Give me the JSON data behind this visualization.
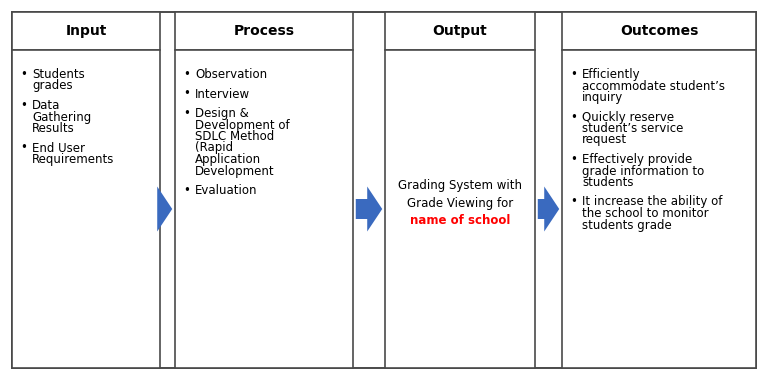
{
  "background_color": "#ffffff",
  "border_color": "#4a4a4a",
  "arrow_color": "#3a6abf",
  "text_color": "#000000",
  "red_text_color": "#ff0000",
  "columns": [
    {
      "header": "Input",
      "bullet_items": [
        "Students\ngrades",
        "Data\nGathering\nResults",
        "End User\nRequirements"
      ],
      "center_text": null,
      "center_text_red": null
    },
    {
      "header": "Process",
      "bullet_items": [
        "Observation",
        "Interview",
        "Design &\nDevelopment of\nSDLC Method\n(Rapid\nApplication\nDevelopment",
        "Evaluation"
      ],
      "center_text": null,
      "center_text_red": null
    },
    {
      "header": "Output",
      "bullet_items": [],
      "center_text": "Grading System with\nGrade Viewing for",
      "center_text_red": "name of school"
    },
    {
      "header": "Outcomes",
      "bullet_items": [
        "Efficiently\naccommodate student’s\ninquiry",
        "Quickly reserve\nstudent’s service\nrequest",
        "Effectively provide\ngrade information to\nstudents",
        "It increase the ability of\nthe school to monitor\nstudents grade"
      ],
      "center_text": null,
      "center_text_red": null
    }
  ],
  "figsize": [
    7.68,
    3.8
  ],
  "dpi": 100,
  "header_fontsize": 10,
  "body_fontsize": 8.5,
  "bullet_char": "•"
}
